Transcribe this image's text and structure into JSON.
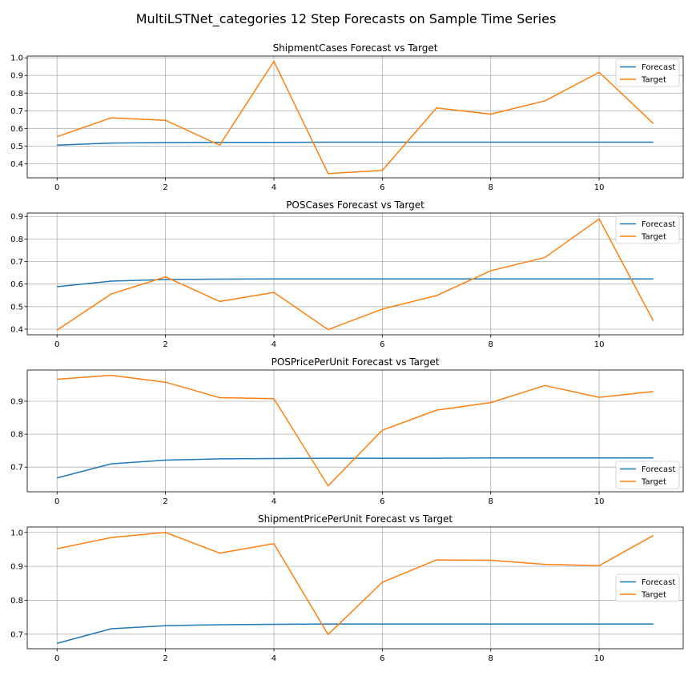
{
  "figure": {
    "title": "MultiLSTNet_categories 12 Step Forecasts on Sample Time Series"
  },
  "chart_data": [
    {
      "type": "line",
      "title": "ShipmentCases Forecast vs Target",
      "x": [
        0,
        1,
        2,
        3,
        4,
        5,
        6,
        7,
        8,
        9,
        10,
        11
      ],
      "xticks": [
        0,
        2,
        4,
        6,
        8,
        10
      ],
      "xlim": [
        -0.55,
        11.55
      ],
      "ylim": [
        0.32,
        1.01
      ],
      "yticks": [
        0.4,
        0.5,
        0.6,
        0.7,
        0.8,
        0.9,
        1.0
      ],
      "ytick_labels": [
        "0.4",
        "0.5",
        "0.6",
        "0.7",
        "0.8",
        "0.9",
        "1.0"
      ],
      "grid": true,
      "legend": "upper right",
      "series": [
        {
          "name": "Forecast",
          "color": "#1f77b4",
          "values": [
            0.505,
            0.517,
            0.52,
            0.521,
            0.521,
            0.522,
            0.522,
            0.522,
            0.522,
            0.522,
            0.522,
            0.522
          ]
        },
        {
          "name": "Target",
          "color": "#ff7f0e",
          "values": [
            0.553,
            0.66,
            0.646,
            0.505,
            0.98,
            0.344,
            0.362,
            0.716,
            0.681,
            0.756,
            0.918,
            0.628
          ]
        }
      ]
    },
    {
      "type": "line",
      "title": "POSCases Forecast vs Target",
      "x": [
        0,
        1,
        2,
        3,
        4,
        5,
        6,
        7,
        8,
        9,
        10,
        11
      ],
      "xticks": [
        0,
        2,
        4,
        6,
        8,
        10
      ],
      "xlim": [
        -0.55,
        11.55
      ],
      "ylim": [
        0.375,
        0.915
      ],
      "yticks": [
        0.4,
        0.5,
        0.6,
        0.7,
        0.8,
        0.9
      ],
      "ytick_labels": [
        "0.4",
        "0.5",
        "0.6",
        "0.7",
        "0.8",
        "0.9"
      ],
      "grid": true,
      "legend": "upper right",
      "series": [
        {
          "name": "Forecast",
          "color": "#1f77b4",
          "values": [
            0.588,
            0.613,
            0.62,
            0.622,
            0.623,
            0.623,
            0.623,
            0.623,
            0.623,
            0.623,
            0.623,
            0.623
          ]
        },
        {
          "name": "Target",
          "color": "#ff7f0e",
          "values": [
            0.396,
            0.556,
            0.632,
            0.523,
            0.563,
            0.398,
            0.489,
            0.549,
            0.659,
            0.718,
            0.889,
            0.436
          ]
        }
      ]
    },
    {
      "type": "line",
      "title": "POSPricePerUnit Forecast vs Target",
      "x": [
        0,
        1,
        2,
        3,
        4,
        5,
        6,
        7,
        8,
        9,
        10,
        11
      ],
      "xticks": [
        0,
        2,
        4,
        6,
        8,
        10
      ],
      "xlim": [
        -0.55,
        11.55
      ],
      "ylim": [
        0.625,
        0.995
      ],
      "yticks": [
        0.7,
        0.8,
        0.9
      ],
      "ytick_labels": [
        "0.7",
        "0.8",
        "0.9"
      ],
      "grid": true,
      "legend": "lower right",
      "series": [
        {
          "name": "Forecast",
          "color": "#1f77b4",
          "values": [
            0.667,
            0.71,
            0.721,
            0.725,
            0.726,
            0.727,
            0.727,
            0.727,
            0.728,
            0.728,
            0.728,
            0.728
          ]
        },
        {
          "name": "Target",
          "color": "#ff7f0e",
          "values": [
            0.967,
            0.979,
            0.958,
            0.911,
            0.908,
            0.643,
            0.812,
            0.873,
            0.896,
            0.948,
            0.912,
            0.93
          ]
        }
      ]
    },
    {
      "type": "line",
      "title": "ShipmentPricePerUnit Forecast vs Target",
      "x": [
        0,
        1,
        2,
        3,
        4,
        5,
        6,
        7,
        8,
        9,
        10,
        11
      ],
      "xticks": [
        0,
        2,
        4,
        6,
        8,
        10
      ],
      "xlim": [
        -0.55,
        11.55
      ],
      "ylim": [
        0.657,
        1.016
      ],
      "yticks": [
        0.7,
        0.8,
        0.9,
        1.0
      ],
      "ytick_labels": [
        "0.7",
        "0.8",
        "0.9",
        "1.0"
      ],
      "grid": true,
      "legend": "center right",
      "series": [
        {
          "name": "Forecast",
          "color": "#1f77b4",
          "values": [
            0.673,
            0.716,
            0.725,
            0.728,
            0.729,
            0.73,
            0.73,
            0.73,
            0.73,
            0.73,
            0.73,
            0.73
          ]
        },
        {
          "name": "Target",
          "color": "#ff7f0e",
          "values": [
            0.952,
            0.985,
            1.0,
            0.939,
            0.967,
            0.699,
            0.853,
            0.919,
            0.918,
            0.906,
            0.902,
            0.991
          ]
        }
      ]
    }
  ]
}
